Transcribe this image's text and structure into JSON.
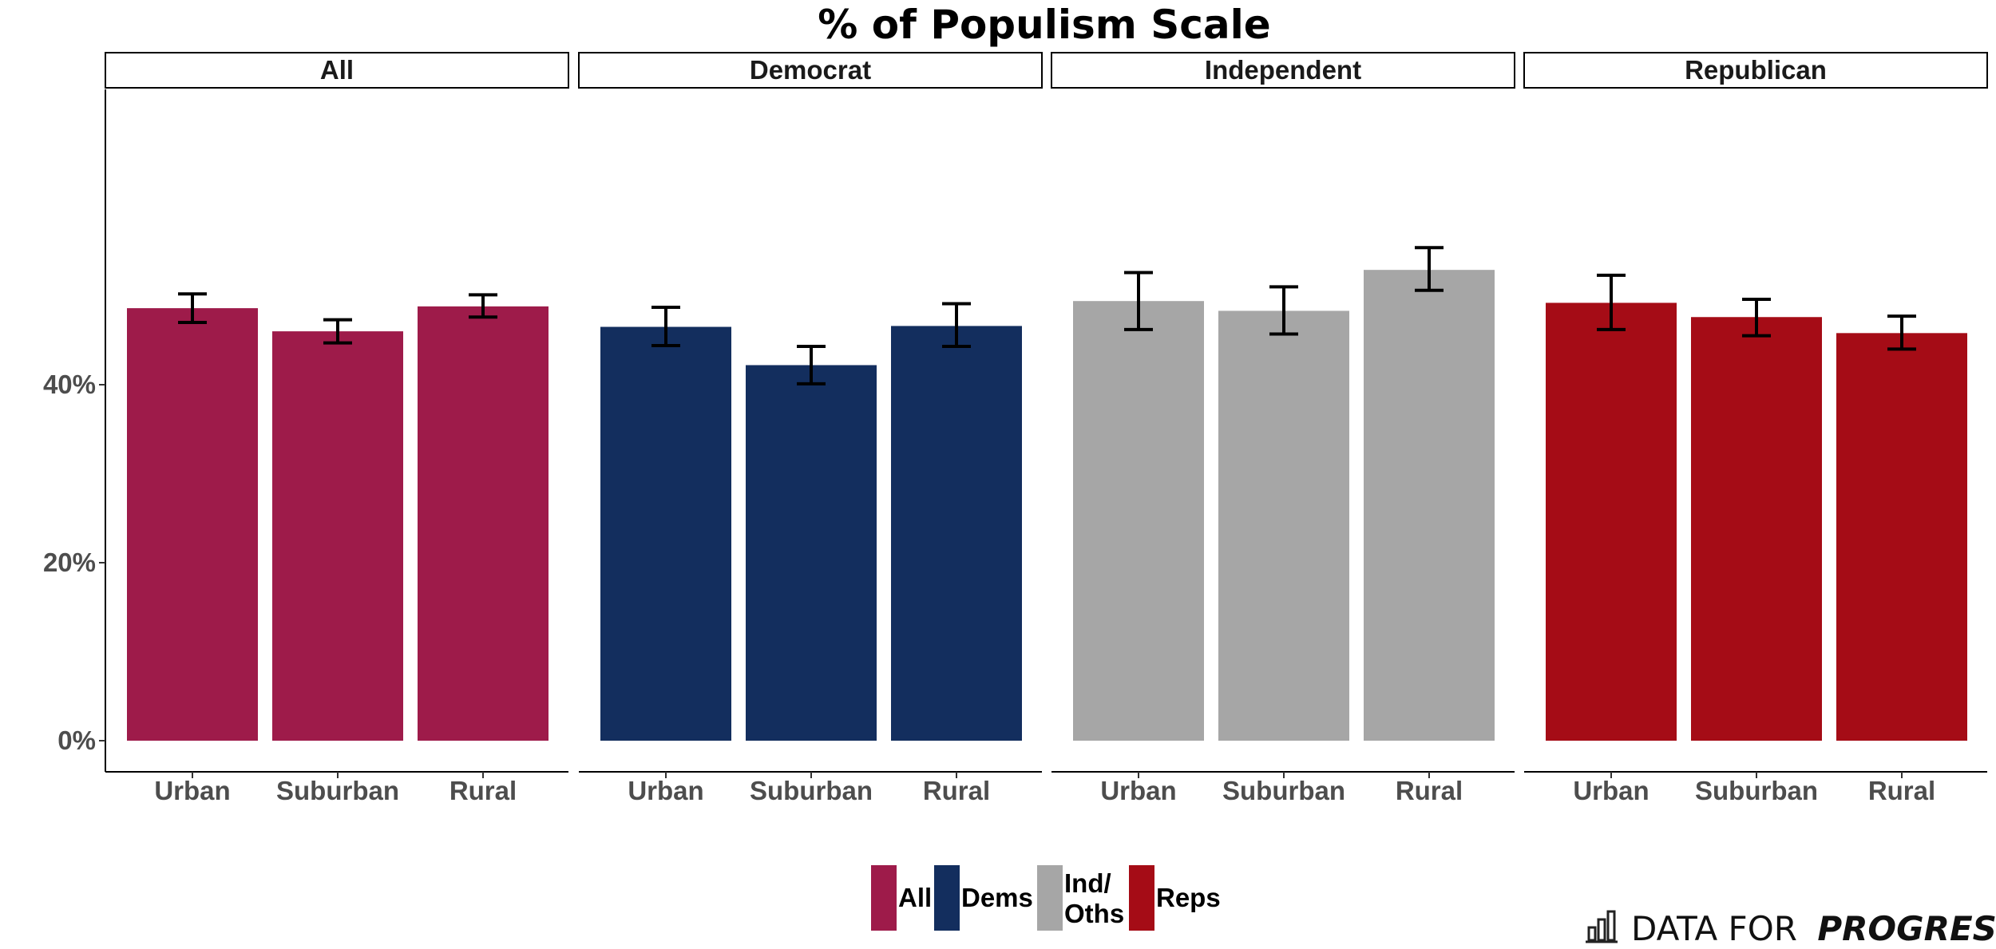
{
  "chart_data": {
    "type": "bar",
    "title": "% of Populism Scale",
    "ylim": [
      0,
      0.58
    ],
    "yticks": [
      0,
      0.2,
      0.4
    ],
    "ytick_labels": [
      "0%",
      "20%",
      "40%"
    ],
    "categories": [
      "Urban",
      "Suburban",
      "Rural"
    ],
    "panels": [
      {
        "label": "All",
        "color": "#9E1B4A",
        "values": [
          0.486,
          0.46,
          0.488
        ],
        "err_low": [
          0.47,
          0.447,
          0.476
        ],
        "err_high": [
          0.502,
          0.473,
          0.501
        ]
      },
      {
        "label": "Democrat",
        "color": "#132E5E",
        "values": [
          0.465,
          0.422,
          0.466
        ],
        "err_low": [
          0.444,
          0.401,
          0.443
        ],
        "err_high": [
          0.487,
          0.443,
          0.491
        ]
      },
      {
        "label": "Independent",
        "color": "#A6A6A6",
        "values": [
          0.494,
          0.483,
          0.529
        ],
        "err_low": [
          0.462,
          0.457,
          0.506
        ],
        "err_high": [
          0.526,
          0.51,
          0.554
        ]
      },
      {
        "label": "Republican",
        "color": "#A50C16",
        "values": [
          0.492,
          0.476,
          0.458
        ],
        "err_low": [
          0.462,
          0.455,
          0.44
        ],
        "err_high": [
          0.523,
          0.496,
          0.477
        ]
      }
    ],
    "legend": {
      "position": "bottom",
      "items": [
        {
          "label": "All",
          "color": "#9E1B4A"
        },
        {
          "label": "Dems",
          "color": "#132E5E"
        },
        {
          "label": "Ind/\nOths",
          "color": "#A6A6A6"
        },
        {
          "label": "Reps",
          "color": "#A50C16"
        }
      ]
    },
    "grid": false
  },
  "branding": {
    "prefix": "DATA FOR",
    "emphasis": "PROGRESS"
  }
}
